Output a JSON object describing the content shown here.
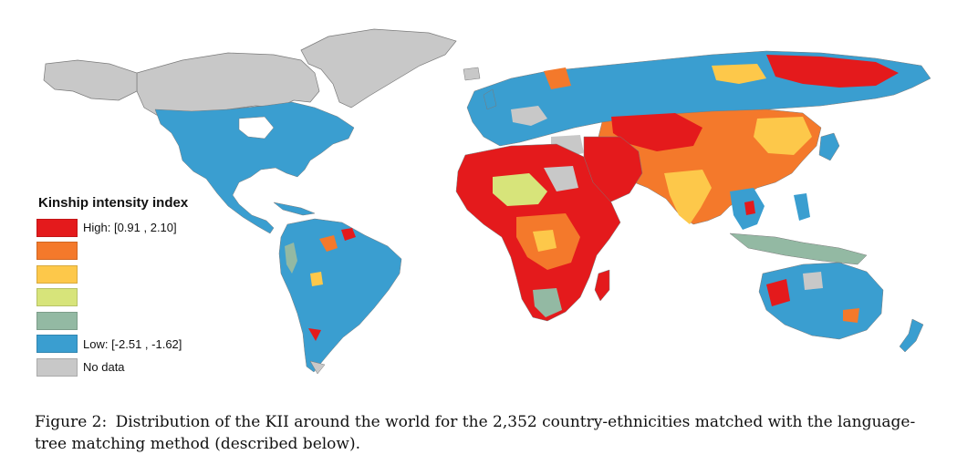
{
  "map": {
    "legend": {
      "title": "Kinship intensity index",
      "bins": [
        {
          "label": "High: [0.91 , 2.10]",
          "color": "#e41a1c"
        },
        {
          "label": "",
          "color": "#f4792b"
        },
        {
          "label": "",
          "color": "#fdc84a"
        },
        {
          "label": "",
          "color": "#d7e47a"
        },
        {
          "label": "",
          "color": "#93b9a3"
        },
        {
          "label": "Low: [-2.51 , -1.62]",
          "color": "#3a9ed0"
        },
        {
          "label": "No data",
          "color": "#c8c8c8"
        }
      ]
    },
    "colors": {
      "high": "#e41a1c",
      "orange": "#f4792b",
      "yellow": "#fdc84a",
      "lime": "#d7e47a",
      "sage": "#93b9a3",
      "low": "#3a9ed0",
      "no_data": "#c8c8c8",
      "outline": "#7a7a7a"
    }
  },
  "caption": {
    "label": "Figure 2:",
    "text": "Distribution of the KII around the world for the 2,352 country-ethnicities matched with the language-tree matching method (described below)."
  }
}
